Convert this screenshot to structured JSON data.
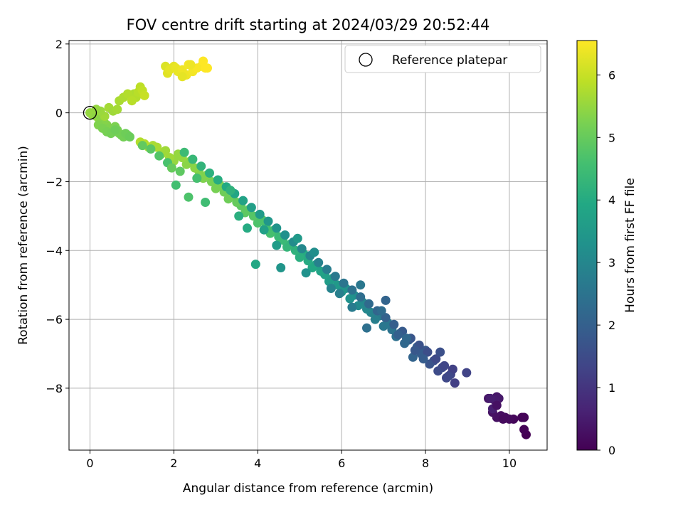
{
  "chart_data": {
    "type": "scatter",
    "title": "FOV centre drift starting at 2024/03/29 20:52:44",
    "xlabel": "Angular distance from reference (arcmin)",
    "ylabel": "Rotation from reference (arcmin)",
    "xlim": [
      -0.5,
      10.9
    ],
    "ylim": [
      -9.8,
      2.1
    ],
    "xticks": [
      0,
      2,
      4,
      6,
      8,
      10
    ],
    "yticks": [
      2,
      0,
      -2,
      -4,
      -6,
      -8
    ],
    "grid": true,
    "legend": {
      "placement": "top-right",
      "entries": [
        "Reference platepar"
      ]
    },
    "reference_point": {
      "x": 0,
      "y": 0
    },
    "colorbar": {
      "label": "Hours from first FF file",
      "range": [
        0,
        6.55
      ],
      "ticks": [
        0,
        1,
        2,
        3,
        4,
        5,
        6
      ],
      "colormap": "viridis"
    },
    "series": [
      {
        "x": [
          10.4,
          10.35,
          10.3,
          10.1,
          10.0,
          9.9,
          9.8,
          9.7,
          9.6,
          9.5,
          9.7,
          9.75,
          9.65,
          9.55,
          9.6,
          10.35,
          9.7,
          9.85
        ],
        "y": [
          -9.35,
          -9.2,
          -8.85,
          -8.9,
          -8.9,
          -8.85,
          -8.8,
          -8.85,
          -8.7,
          -8.3,
          -8.25,
          -8.3,
          -8.35,
          -8.3,
          -8.6,
          -8.85,
          -8.5,
          -8.9
        ],
        "t": [
          0.0,
          0.04,
          0.08,
          0.12,
          0.16,
          0.2,
          0.24,
          0.28,
          0.32,
          0.36,
          0.4,
          0.44,
          0.48,
          0.52,
          0.56,
          0.06,
          0.3,
          0.18
        ]
      },
      {
        "x": [
          8.98,
          8.7,
          8.6,
          8.5,
          8.4,
          8.3,
          8.2,
          8.1,
          8.0,
          7.9,
          7.8,
          7.7,
          7.6,
          7.5,
          7.4,
          7.3,
          7.2,
          7.1,
          7.0,
          6.9,
          6.8,
          6.7,
          6.6,
          6.5,
          6.4,
          6.3,
          6.2,
          6.1,
          6.0,
          5.9,
          5.8,
          5.7,
          5.6,
          5.5,
          5.4,
          5.3,
          5.2,
          5.1,
          5.0,
          4.9,
          4.8,
          4.7,
          4.6,
          4.5,
          4.4,
          4.3,
          4.2,
          4.1,
          4.0,
          3.9,
          3.8,
          3.7,
          3.6,
          3.5,
          3.4,
          3.3,
          3.2,
          3.1,
          3.0,
          2.9,
          2.8,
          2.7,
          2.6,
          2.5,
          2.4,
          2.3,
          2.2,
          2.1,
          2.0,
          1.9,
          1.8,
          1.7,
          1.6,
          1.5,
          1.4,
          1.3,
          1.2,
          8.65,
          8.45,
          8.25,
          8.05,
          7.85,
          7.65,
          7.45,
          7.25,
          7.05,
          6.85,
          6.65,
          6.45,
          6.25,
          6.05,
          5.85,
          5.65,
          5.45,
          5.25,
          5.05,
          4.85,
          4.65,
          4.45,
          4.25,
          4.05,
          3.85,
          3.65,
          3.45,
          3.25,
          3.05,
          2.85,
          2.65,
          2.45,
          2.25,
          2.05,
          1.85,
          1.65,
          1.45,
          1.25,
          6.45,
          7.35,
          4.55,
          8.55,
          7.75,
          6.95,
          5.95,
          5.35,
          4.95,
          3.75,
          3.35,
          2.75,
          2.15,
          1.95,
          7.05,
          6.6,
          5.75,
          4.15,
          3.95,
          2.55,
          8.35,
          7.95,
          7.55,
          6.25,
          5.15,
          4.45,
          3.55,
          2.35
        ],
        "y": [
          -7.55,
          -7.85,
          -7.6,
          -7.7,
          -7.4,
          -7.5,
          -7.2,
          -7.3,
          -6.9,
          -7.0,
          -6.8,
          -7.1,
          -6.6,
          -6.7,
          -6.4,
          -6.5,
          -6.3,
          -6.1,
          -6.2,
          -5.9,
          -6.0,
          -5.8,
          -5.7,
          -5.5,
          -5.6,
          -5.3,
          -5.4,
          -5.1,
          -5.2,
          -5.0,
          -4.8,
          -4.9,
          -4.7,
          -4.6,
          -4.4,
          -4.5,
          -4.3,
          -4.1,
          -4.2,
          -4.0,
          -3.8,
          -3.9,
          -3.7,
          -3.6,
          -3.4,
          -3.5,
          -3.3,
          -3.1,
          -3.2,
          -3.0,
          -2.8,
          -2.9,
          -2.7,
          -2.6,
          -2.4,
          -2.5,
          -2.3,
          -2.1,
          -2.2,
          -2.0,
          -1.8,
          -1.9,
          -1.7,
          -1.6,
          -1.4,
          -1.5,
          -1.3,
          -1.2,
          -1.4,
          -1.3,
          -1.1,
          -1.2,
          -1.0,
          -0.95,
          -1.0,
          -0.9,
          -0.85,
          -7.45,
          -7.35,
          -7.15,
          -6.95,
          -6.75,
          -6.55,
          -6.35,
          -6.15,
          -5.95,
          -5.75,
          -5.55,
          -5.35,
          -5.15,
          -4.95,
          -4.75,
          -4.55,
          -4.35,
          -4.15,
          -3.95,
          -3.75,
          -3.55,
          -3.35,
          -3.15,
          -2.95,
          -2.75,
          -2.55,
          -2.35,
          -2.15,
          -1.95,
          -1.75,
          -1.55,
          -1.35,
          -1.15,
          -2.1,
          -1.45,
          -1.25,
          -1.05,
          -0.95,
          -5.0,
          -6.45,
          -4.5,
          -7.65,
          -6.9,
          -5.75,
          -5.25,
          -4.05,
          -3.65,
          -3.35,
          -2.25,
          -2.6,
          -1.7,
          -1.6,
          -5.45,
          -6.25,
          -5.1,
          -3.4,
          -4.4,
          -1.9,
          -6.95,
          -7.15,
          -6.55,
          -5.65,
          -4.65,
          -3.85,
          -3.0,
          -2.45
        ],
        "t": [
          1.3,
          1.2,
          1.3,
          1.4,
          1.5,
          1.5,
          1.6,
          1.7,
          1.8,
          1.9,
          2.0,
          2.1,
          2.1,
          2.2,
          2.3,
          2.4,
          2.5,
          2.6,
          2.6,
          2.7,
          2.8,
          2.9,
          3.0,
          3.0,
          3.1,
          3.2,
          3.3,
          3.3,
          3.4,
          3.5,
          3.6,
          3.6,
          3.7,
          3.8,
          3.8,
          3.9,
          4.0,
          4.0,
          4.1,
          4.2,
          4.2,
          4.3,
          4.4,
          4.4,
          4.5,
          4.6,
          4.6,
          4.7,
          4.7,
          4.8,
          4.8,
          4.9,
          4.9,
          5.0,
          5.0,
          5.1,
          5.1,
          5.2,
          5.2,
          5.2,
          5.3,
          5.3,
          5.3,
          5.4,
          5.4,
          5.4,
          5.5,
          5.5,
          5.5,
          5.6,
          5.6,
          5.6,
          5.7,
          5.7,
          5.7,
          5.8,
          5.8,
          1.25,
          1.35,
          1.45,
          1.55,
          1.65,
          1.75,
          1.85,
          1.95,
          2.05,
          2.15,
          2.25,
          2.35,
          2.45,
          2.55,
          2.65,
          2.75,
          2.85,
          2.95,
          3.05,
          3.15,
          3.25,
          3.35,
          3.45,
          3.55,
          3.65,
          3.75,
          3.85,
          3.95,
          4.05,
          4.15,
          4.25,
          4.35,
          4.45,
          4.55,
          4.65,
          4.75,
          4.85,
          4.95,
          2.6,
          2.0,
          3.4,
          1.4,
          1.8,
          2.3,
          2.8,
          3.2,
          3.5,
          4.0,
          4.2,
          4.5,
          4.9,
          5.0,
          2.1,
          2.4,
          2.9,
          3.7,
          3.9,
          4.6,
          1.6,
          1.9,
          2.2,
          2.7,
          3.3,
          3.6,
          4.1,
          4.7
        ]
      },
      {
        "x": [
          0.0,
          0.05,
          0.1,
          0.15,
          0.2,
          0.25,
          0.3,
          0.35,
          0.4,
          0.45,
          0.5,
          0.55,
          0.6,
          0.65,
          0.7,
          0.75,
          0.8,
          0.85,
          0.9,
          0.95,
          1.0,
          1.05,
          1.1,
          1.15,
          1.2,
          1.25,
          1.3,
          0.2,
          0.3,
          0.4,
          0.5,
          0.35,
          0.45,
          0.25,
          0.15,
          0.6,
          0.7,
          0.8,
          0.9,
          1.0,
          0.55,
          0.65
        ],
        "y": [
          0.0,
          -0.05,
          0.0,
          -0.1,
          -0.15,
          -0.2,
          -0.25,
          -0.3,
          -0.35,
          -0.45,
          -0.5,
          -0.55,
          -0.4,
          -0.5,
          -0.6,
          -0.65,
          -0.7,
          -0.6,
          -0.65,
          -0.7,
          0.5,
          0.55,
          0.45,
          0.6,
          0.75,
          0.65,
          0.5,
          -0.35,
          -0.45,
          -0.55,
          -0.6,
          -0.1,
          0.15,
          0.05,
          0.1,
          -0.5,
          0.35,
          0.45,
          0.55,
          0.35,
          0.05,
          0.1
        ],
        "t": [
          5.5,
          5.5,
          5.5,
          5.45,
          5.45,
          5.4,
          5.4,
          5.35,
          5.35,
          5.3,
          5.3,
          5.25,
          5.25,
          5.2,
          5.2,
          5.15,
          5.15,
          5.1,
          5.1,
          5.05,
          5.7,
          5.75,
          5.8,
          5.85,
          5.9,
          5.95,
          6.0,
          5.3,
          5.25,
          5.2,
          5.15,
          5.6,
          5.65,
          5.55,
          5.5,
          5.1,
          5.7,
          5.75,
          5.8,
          5.85,
          5.6,
          5.65
        ]
      },
      {
        "x": [
          1.8,
          1.85,
          1.9,
          2.0,
          2.05,
          2.1,
          2.2,
          2.3,
          2.35,
          2.45,
          2.55,
          2.65,
          2.7,
          2.75,
          2.8,
          2.2,
          2.4
        ],
        "y": [
          1.35,
          1.15,
          1.25,
          1.35,
          1.3,
          1.2,
          1.25,
          1.1,
          1.4,
          1.2,
          1.3,
          1.35,
          1.5,
          1.3,
          1.3,
          1.05,
          1.4
        ],
        "t": [
          6.2,
          6.25,
          6.3,
          6.3,
          6.35,
          6.35,
          6.4,
          6.4,
          6.45,
          6.45,
          6.5,
          6.5,
          6.55,
          6.55,
          6.55,
          6.3,
          6.4
        ]
      }
    ]
  }
}
